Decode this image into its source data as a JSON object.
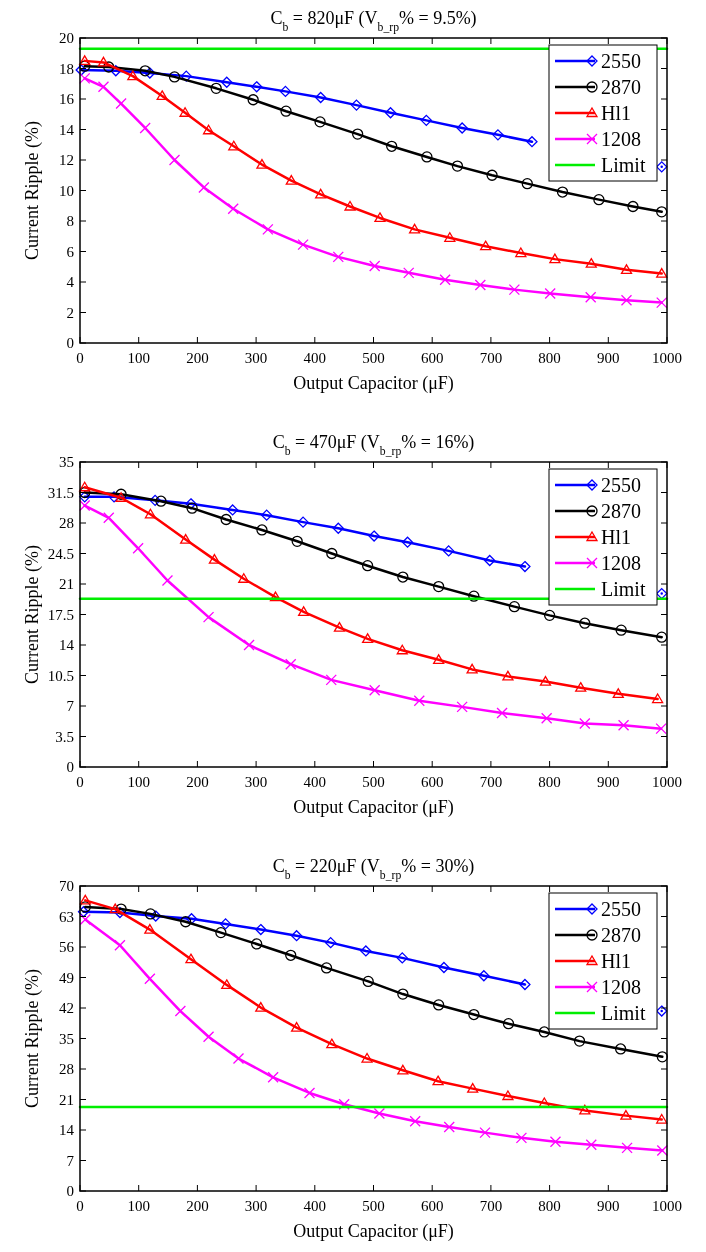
{
  "chart_data": [
    {
      "type": "line",
      "title": "C$_{b}$ = 820μF (V$_{b_rp}$% = 9.5%)",
      "xlabel": "Output Capacitor (μF)",
      "ylabel": "Current Ripple (%)",
      "xlim": [
        0,
        1000
      ],
      "xticks": [
        0,
        100,
        200,
        300,
        400,
        500,
        600,
        700,
        800,
        900,
        1000
      ],
      "ylim": [
        0,
        20
      ],
      "yticks": [
        0,
        2,
        4,
        6,
        8,
        10,
        12,
        14,
        16,
        18,
        20
      ],
      "grid": false,
      "legend": "top right",
      "series": [
        {
          "name": "2550",
          "color": "#0000ff",
          "marker": "diamond",
          "x": [
            2,
            61,
            119,
            181,
            250,
            301,
            350,
            410,
            471,
            529,
            590,
            651,
            712,
            770,
            830,
            890,
            950,
            991
          ],
          "values": [
            17.9,
            17.85,
            17.7,
            17.5,
            17.1,
            16.8,
            16.5,
            16.1,
            15.6,
            15.1,
            14.6,
            14.1,
            13.65,
            13.2,
            null,
            null,
            null,
            11.55
          ]
        },
        {
          "name": "2870",
          "color": "#000000",
          "marker": "circle",
          "x": [
            8,
            49,
            111,
            161,
            232,
            295,
            351,
            409,
            473,
            531,
            591,
            643,
            702,
            762,
            822,
            884,
            942,
            991
          ],
          "values": [
            18.15,
            18.1,
            17.85,
            17.45,
            16.7,
            15.95,
            15.2,
            14.5,
            13.7,
            12.9,
            12.2,
            11.6,
            11.0,
            10.45,
            9.9,
            9.4,
            8.95,
            8.6
          ]
        },
        {
          "name": "Hl1",
          "color": "#ff0000",
          "marker": "triangle",
          "x": [
            8,
            40,
            90,
            140,
            179,
            219,
            262,
            310,
            360,
            410,
            460,
            511,
            570,
            630,
            691,
            751,
            809,
            871,
            931,
            991
          ],
          "values": [
            18.5,
            18.4,
            17.5,
            16.2,
            15.1,
            13.95,
            12.9,
            11.7,
            10.65,
            9.75,
            8.95,
            8.2,
            7.45,
            6.9,
            6.35,
            5.9,
            5.5,
            5.2,
            4.8,
            4.55
          ]
        },
        {
          "name": "1208",
          "color": "#ff00ff",
          "marker": "cross",
          "x": [
            8,
            40,
            70,
            111,
            161,
            211,
            261,
            320,
            380,
            440,
            502,
            560,
            622,
            682,
            740,
            801,
            870,
            931,
            991
          ],
          "values": [
            17.35,
            16.8,
            15.7,
            14.1,
            12.0,
            10.2,
            8.8,
            7.45,
            6.45,
            5.65,
            5.05,
            4.6,
            4.15,
            3.8,
            3.5,
            3.25,
            3.0,
            2.8,
            2.65
          ]
        },
        {
          "name": "Limit",
          "color": "#00ee00",
          "marker": "none",
          "x": [
            0,
            1000
          ],
          "values": [
            19.3,
            19.3
          ]
        }
      ]
    },
    {
      "type": "line",
      "title": "C$_{b}$ = 470μF (V$_{b_rp}$% = 16%)",
      "xlabel": "Output Capacitor (μF)",
      "ylabel": "Current Ripple (%)",
      "xlim": [
        0,
        1000
      ],
      "xticks": [
        0,
        100,
        200,
        300,
        400,
        500,
        600,
        700,
        800,
        900,
        1000
      ],
      "ylim": [
        0,
        35
      ],
      "yticks": [
        0,
        3.5,
        7,
        10.5,
        14,
        17.5,
        21,
        24.5,
        28,
        31.5,
        35
      ],
      "grid": false,
      "legend": "top right",
      "series": [
        {
          "name": "2550",
          "color": "#0000ff",
          "marker": "diamond",
          "x": [
            8,
            58,
            128,
            189,
            260,
            318,
            380,
            440,
            501,
            558,
            628,
            698,
            758,
            808,
            870,
            930,
            991
          ],
          "values": [
            31.0,
            31.0,
            30.6,
            30.2,
            29.5,
            28.9,
            28.1,
            27.4,
            26.5,
            25.8,
            24.8,
            23.7,
            23.0,
            null,
            null,
            null,
            19.9
          ]
        },
        {
          "name": "2870",
          "color": "#000000",
          "marker": "circle",
          "x": [
            8,
            70,
            138,
            191,
            249,
            310,
            370,
            429,
            490,
            550,
            611,
            671,
            740,
            800,
            860,
            922,
            991
          ],
          "values": [
            31.5,
            31.3,
            30.5,
            29.7,
            28.4,
            27.2,
            25.9,
            24.5,
            23.1,
            21.8,
            20.7,
            19.6,
            18.4,
            17.4,
            16.5,
            15.7,
            14.9
          ]
        },
        {
          "name": "Hl1",
          "color": "#ff0000",
          "marker": "triangle",
          "x": [
            8,
            70,
            120,
            180,
            229,
            279,
            333,
            381,
            442,
            490,
            549,
            611,
            668,
            729,
            793,
            853,
            917,
            984
          ],
          "values": [
            32.1,
            30.9,
            29.0,
            26.1,
            23.8,
            21.6,
            19.5,
            17.8,
            16.0,
            14.7,
            13.4,
            12.3,
            11.2,
            10.4,
            9.8,
            9.1,
            8.4,
            7.8
          ]
        },
        {
          "name": "1208",
          "color": "#ff00ff",
          "marker": "cross",
          "x": [
            8,
            49,
            99,
            149,
            219,
            288,
            359,
            428,
            502,
            578,
            651,
            719,
            795,
            860,
            926,
            990
          ],
          "values": [
            30.0,
            28.6,
            25.1,
            21.4,
            17.2,
            14.0,
            11.8,
            10.0,
            8.8,
            7.6,
            6.9,
            6.2,
            5.6,
            5.0,
            4.8,
            4.4
          ]
        },
        {
          "name": "Limit",
          "color": "#00ee00",
          "marker": "none",
          "x": [
            0,
            1000
          ],
          "values": [
            19.3,
            19.3
          ]
        }
      ]
    },
    {
      "type": "line",
      "title": "C$_{b}$ = 220μF (V$_{b_rp}$% = 30%)",
      "xlabel": "Output Capacitor (μF)",
      "ylabel": "Current Ripple (%)",
      "xlim": [
        0,
        1000
      ],
      "xticks": [
        0,
        100,
        200,
        300,
        400,
        500,
        600,
        700,
        800,
        900,
        1000
      ],
      "ylim": [
        0,
        70
      ],
      "yticks": [
        0,
        7,
        14,
        21,
        28,
        35,
        42,
        49,
        56,
        63,
        70
      ],
      "grid": false,
      "legend": "top right",
      "series": [
        {
          "name": "2550",
          "color": "#0000ff",
          "marker": "diamond",
          "x": [
            6,
            68,
            129,
            190,
            248,
            308,
            369,
            427,
            487,
            549,
            620,
            688,
            758,
            808,
            870,
            930,
            991
          ],
          "values": [
            64.1,
            63.9,
            63.1,
            62.5,
            61.3,
            60.0,
            58.6,
            57.0,
            55.1,
            53.5,
            51.3,
            49.4,
            47.4,
            null,
            null,
            null,
            41.3
          ]
        },
        {
          "name": "2870",
          "color": "#000000",
          "marker": "circle",
          "x": [
            9,
            70,
            120,
            180,
            240,
            301,
            359,
            420,
            491,
            550,
            611,
            671,
            730,
            791,
            851,
            921,
            992
          ],
          "values": [
            65.2,
            64.7,
            63.6,
            61.8,
            59.3,
            56.7,
            54.1,
            51.2,
            48.1,
            45.2,
            42.7,
            40.5,
            38.4,
            36.5,
            34.4,
            32.6,
            30.8
          ]
        },
        {
          "name": "Hl1",
          "color": "#ff0000",
          "marker": "triangle",
          "x": [
            9,
            60,
            119,
            189,
            250,
            308,
            369,
            429,
            489,
            550,
            610,
            669,
            729,
            791,
            860,
            930,
            991
          ],
          "values": [
            66.7,
            64.7,
            60.0,
            53.2,
            47.3,
            42.1,
            37.5,
            33.7,
            30.4,
            27.7,
            25.2,
            23.5,
            21.8,
            20.2,
            18.5,
            17.3,
            16.4
          ]
        },
        {
          "name": "1208",
          "color": "#ff00ff",
          "marker": "cross",
          "x": [
            9,
            68,
            119,
            171,
            219,
            270,
            329,
            391,
            450,
            510,
            571,
            629,
            690,
            752,
            810,
            871,
            932,
            992
          ],
          "values": [
            62.3,
            56.4,
            48.7,
            41.3,
            35.4,
            30.4,
            26.1,
            22.5,
            19.9,
            17.8,
            16.0,
            14.7,
            13.4,
            12.2,
            11.3,
            10.6,
            9.9,
            9.3
          ]
        },
        {
          "name": "Limit",
          "color": "#00ee00",
          "marker": "none",
          "x": [
            0,
            1000
          ],
          "values": [
            19.3,
            19.3
          ]
        }
      ]
    }
  ]
}
